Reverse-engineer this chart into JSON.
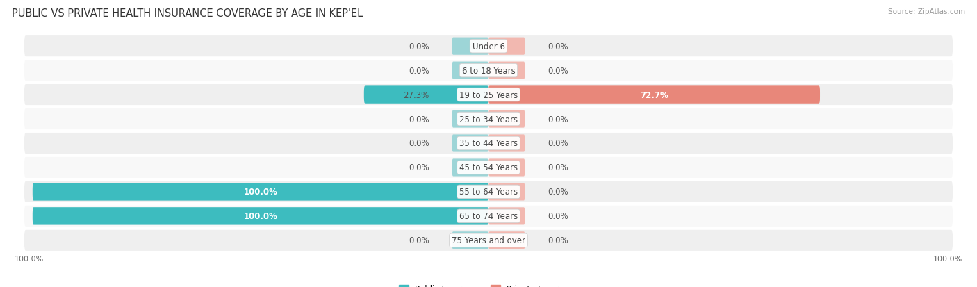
{
  "title": "PUBLIC VS PRIVATE HEALTH INSURANCE COVERAGE BY AGE IN KEP'EL",
  "source": "Source: ZipAtlas.com",
  "categories": [
    "Under 6",
    "6 to 18 Years",
    "19 to 25 Years",
    "25 to 34 Years",
    "35 to 44 Years",
    "45 to 54 Years",
    "55 to 64 Years",
    "65 to 74 Years",
    "75 Years and over"
  ],
  "public_values": [
    0.0,
    0.0,
    27.3,
    0.0,
    0.0,
    0.0,
    100.0,
    100.0,
    0.0
  ],
  "private_values": [
    0.0,
    0.0,
    72.7,
    0.0,
    0.0,
    0.0,
    0.0,
    0.0,
    0.0
  ],
  "public_color": "#3DBCBF",
  "private_color": "#E8877A",
  "public_color_light": "#9DD5D7",
  "private_color_light": "#F2B8B0",
  "row_bg_even": "#EFEFEF",
  "row_bg_odd": "#F8F8F8",
  "label_fontsize": 8.5,
  "title_fontsize": 10.5,
  "source_fontsize": 7.5,
  "axis_label_fontsize": 8,
  "legend_fontsize": 8.5,
  "max_value": 100.0,
  "min_bar_display": 8.0,
  "figsize": [
    14.06,
    4.14
  ],
  "dpi": 100
}
